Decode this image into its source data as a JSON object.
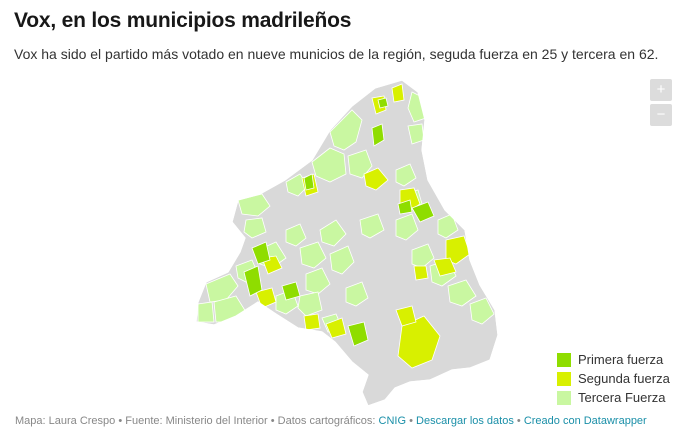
{
  "title": "Vox, en los municipios madrileños",
  "subtitle": "Vox ha sido el partido más votado en nueve municios de la región, seguda fuerza en 25 y tercera en 62.",
  "zoom": {
    "in_label": "+",
    "out_label": "−"
  },
  "colors": {
    "primera": "#8fdd00",
    "segunda": "#d8f000",
    "tercera": "#c9f7a1",
    "other": "#d9d9d9",
    "border": "#ffffff"
  },
  "legend": [
    {
      "label": "Primera fuerza",
      "category": "primera"
    },
    {
      "label": "Segunda fuerza",
      "category": "segunda"
    },
    {
      "label": "Tercera Fuerza",
      "category": "tercera"
    }
  ],
  "footer": {
    "text_1": "Mapa: Laura Crespo • Fuente: Ministerio del Interior • Datos cartográficos: ",
    "cnig": "CNIG",
    "sep_1": " • ",
    "download": "Descargar los datos",
    "sep_2": " • ",
    "created": "Creado con Datawrapper"
  }
}
